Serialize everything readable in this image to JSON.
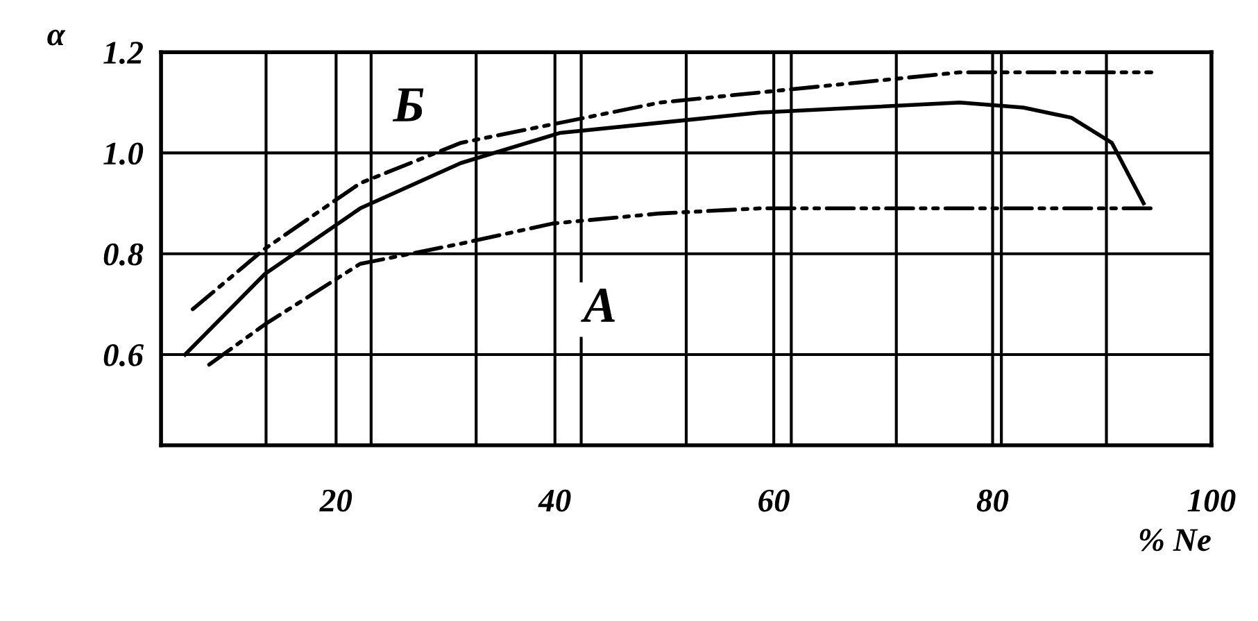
{
  "chart_data": {
    "type": "line",
    "xlabel": "% Ne",
    "ylabel": "α",
    "xlim": [
      4,
      100
    ],
    "ylim": [
      0.42,
      1.2
    ],
    "xticks": [
      {
        "value": 4,
        "label": null
      },
      {
        "value": 13.6,
        "label": null
      },
      20,
      {
        "value": 23.2,
        "label": null
      },
      {
        "value": 32.8,
        "label": null
      },
      40,
      {
        "value": 42.4,
        "label": null
      },
      {
        "value": 52,
        "label": null
      },
      60,
      {
        "value": 61.6,
        "label": null
      },
      {
        "value": 71.2,
        "label": null
      },
      80,
      {
        "value": 80.8,
        "label": null
      },
      {
        "value": 90.4,
        "label": null
      },
      100
    ],
    "yticks": [
      0.6,
      0.8,
      {
        "value": 1.0,
        "label": "1.0"
      },
      1.2
    ],
    "grid": true,
    "legend": false,
    "series": [
      {
        "color": "#000000",
        "line_style": "dashdot",
        "x": [
          6.9,
          13.5,
          22.2,
          31.4,
          40.5,
          49.6,
          58.7,
          67.9,
          77,
          85.8,
          94.5
        ],
        "values": [
          0.69,
          0.81,
          0.94,
          1.02,
          1.06,
          1.1,
          1.12,
          1.14,
          1.16,
          1.16,
          1.16
        ]
      },
      {
        "color": "#000000",
        "line_style": "solid",
        "x": [
          6.2,
          13.5,
          22.2,
          31.4,
          40.5,
          49.6,
          58.7,
          67.9,
          77,
          82.8,
          87.2,
          90.9,
          93.8
        ],
        "values": [
          0.6,
          0.76,
          0.89,
          0.98,
          1.04,
          1.06,
          1.08,
          1.09,
          1.1,
          1.09,
          1.07,
          1.02,
          0.9
        ]
      },
      {
        "color": "#000000",
        "line_style": "dashdot",
        "x": [
          8.4,
          13.5,
          22.2,
          31.4,
          39.8,
          49.6,
          58.7,
          67.9,
          77,
          85.8,
          94.5
        ],
        "values": [
          0.58,
          0.66,
          0.78,
          0.82,
          0.86,
          0.88,
          0.89,
          0.89,
          0.89,
          0.89,
          0.89
        ]
      }
    ],
    "annotations": [
      "Б",
      "А"
    ]
  }
}
